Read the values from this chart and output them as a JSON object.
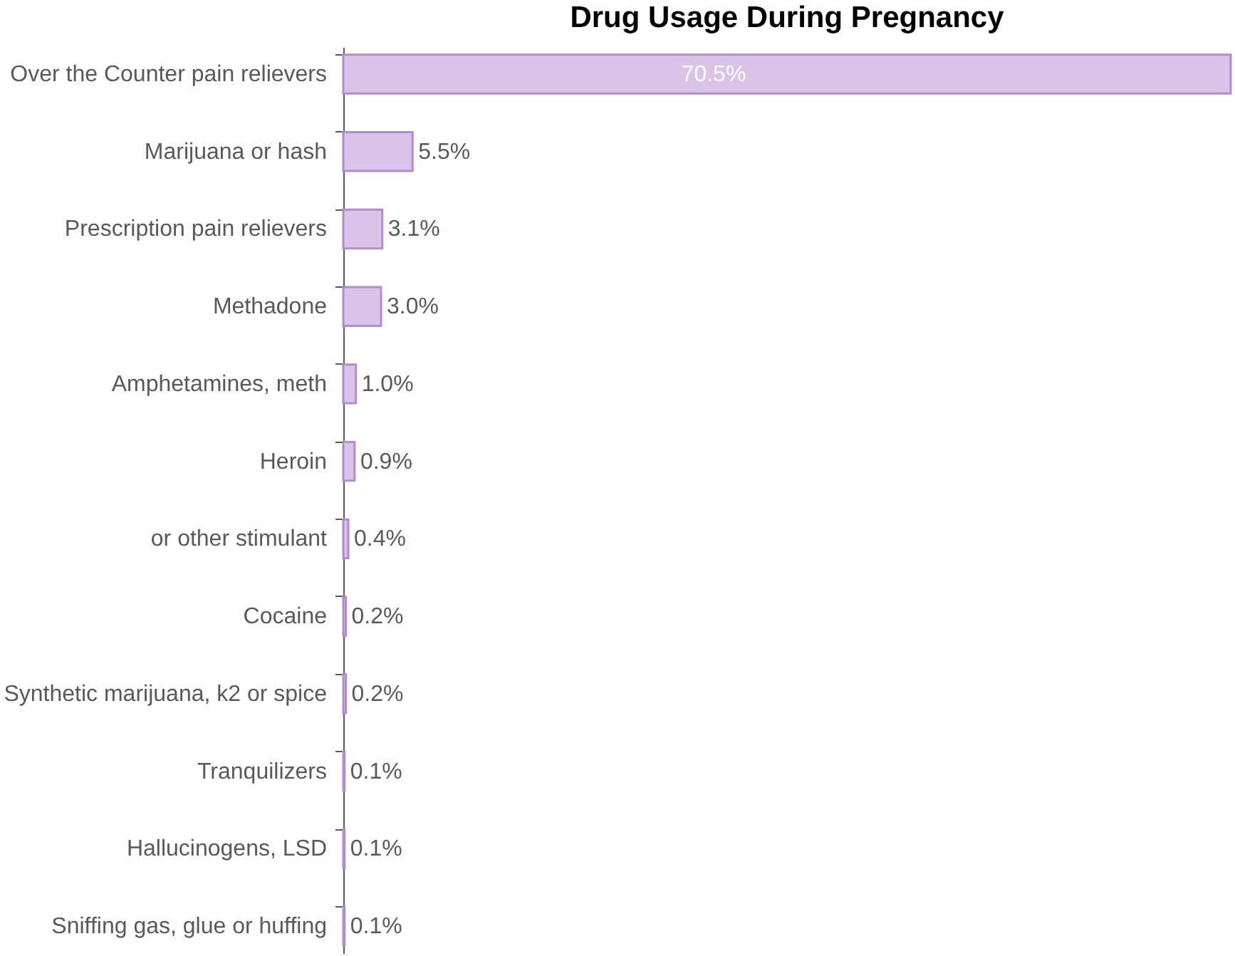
{
  "chart_data": {
    "type": "bar",
    "orientation": "horizontal",
    "title": "Drug Usage During Pregnancy",
    "categories": [
      "Over the Counter pain relievers",
      "Marijuana or hash",
      "Prescription pain relievers",
      "Methadone",
      "Amphetamines, meth",
      "Heroin",
      "or other stimulant",
      "Cocaine",
      "Synthetic marijuana, k2 or spice",
      "Tranquilizers",
      "Hallucinogens, LSD",
      "Sniffing gas, glue or huffing"
    ],
    "values": [
      70.5,
      5.5,
      3.1,
      3.0,
      1.0,
      0.9,
      0.4,
      0.2,
      0.2,
      0.1,
      0.1,
      0.1
    ],
    "value_labels": [
      "70.5%",
      "5.5%",
      "3.1%",
      "3.0%",
      "1.0%",
      "0.9%",
      "0.4%",
      "0.2%",
      "0.2%",
      "0.1%",
      "0.1%",
      "0.1%"
    ],
    "color": "#d9c3e9",
    "grid": false,
    "tick_labels": "y"
  }
}
